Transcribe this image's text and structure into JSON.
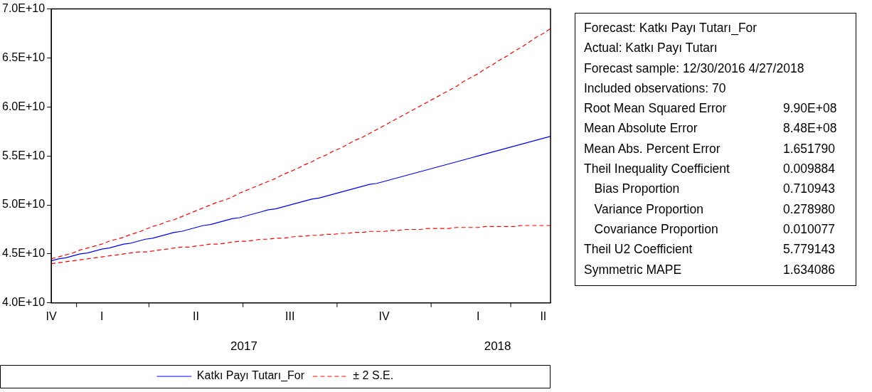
{
  "chart_data": [
    {
      "type": "line",
      "categories": [
        "IV",
        null,
        null,
        null,
        null,
        null,
        null,
        "I",
        null,
        null,
        null,
        null,
        null,
        null,
        null,
        null,
        null,
        null,
        null,
        null,
        "II",
        null,
        null,
        null,
        null,
        null,
        null,
        null,
        null,
        null,
        null,
        null,
        null,
        "III",
        null,
        null,
        null,
        null,
        null,
        null,
        null,
        null,
        null,
        null,
        null,
        null,
        "IV",
        null,
        null,
        null,
        null,
        null,
        null,
        null,
        null,
        null,
        null,
        null,
        null,
        "I",
        null,
        null,
        null,
        null,
        null,
        null,
        null,
        null,
        "II",
        null
      ],
      "series": [
        {
          "name": "Katkı Payı Tutarı_For",
          "color": "#0000ff",
          "line_style": "solid",
          "values": [
            44300000000.0,
            44500000000.0,
            44600000000.0,
            44800000000.0,
            45000000000.0,
            45100000000.0,
            45300000000.0,
            45500000000.0,
            45600000000.0,
            45800000000.0,
            46000000000.0,
            46100000000.0,
            46300000000.0,
            46500000000.0,
            46600000000.0,
            46800000000.0,
            47000000000.0,
            47200000000.0,
            47300000000.0,
            47500000000.0,
            47700000000.0,
            47900000000.0,
            48000000000.0,
            48200000000.0,
            48400000000.0,
            48600000000.0,
            48700000000.0,
            48900000000.0,
            49100000000.0,
            49300000000.0,
            49500000000.0,
            49600000000.0,
            49800000000.0,
            50000000000.0,
            50200000000.0,
            50400000000.0,
            50600000000.0,
            50700000000.0,
            50900000000.0,
            51100000000.0,
            51300000000.0,
            51500000000.0,
            51700000000.0,
            51900000000.0,
            52100000000.0,
            52200000000.0,
            52400000000.0,
            52600000000.0,
            52800000000.0,
            53000000000.0,
            53200000000.0,
            53400000000.0,
            53600000000.0,
            53800000000.0,
            54000000000.0,
            54200000000.0,
            54400000000.0,
            54600000000.0,
            54800000000.0,
            55000000000.0,
            55200000000.0,
            55400000000.0,
            55600000000.0,
            55800000000.0,
            56000000000.0,
            56200000000.0,
            56400000000.0,
            56600000000.0,
            56800000000.0,
            57000000000.0
          ]
        },
        {
          "name": "± 2 S.E.",
          "color": "#ff0000",
          "line_style": "dashed",
          "values": [
            44500000000.0,
            44700000000.0,
            44900000000.0,
            45100000000.0,
            45400000000.0,
            45600000000.0,
            45800000000.0,
            46000000000.0,
            46300000000.0,
            46500000000.0,
            46700000000.0,
            47000000000.0,
            47200000000.0,
            47500000000.0,
            47800000000.0,
            48000000000.0,
            48300000000.0,
            48500000000.0,
            48800000000.0,
            49100000000.0,
            49400000000.0,
            49700000000.0,
            50000000000.0,
            50300000000.0,
            50500000000.0,
            50800000000.0,
            51200000000.0,
            51500000000.0,
            51800000000.0,
            52100000000.0,
            52400000000.0,
            52700000000.0,
            53100000000.0,
            53400000000.0,
            53700000000.0,
            54100000000.0,
            54400000000.0,
            54800000000.0,
            55100000000.0,
            55500000000.0,
            55800000000.0,
            56200000000.0,
            56600000000.0,
            56900000000.0,
            57300000000.0,
            57700000000.0,
            58100000000.0,
            58500000000.0,
            58900000000.0,
            59300000000.0,
            59700000000.0,
            60100000000.0,
            60500000000.0,
            60900000000.0,
            61300000000.0,
            61700000000.0,
            62100000000.0,
            62600000000.0,
            63000000000.0,
            63400000000.0,
            63900000000.0,
            64300000000.0,
            64800000000.0,
            65200000000.0,
            65700000000.0,
            66100000000.0,
            66600000000.0,
            67100000000.0,
            67500000000.0,
            68000000000.0
          ]
        },
        {
          "color": "#ff0000",
          "line_style": "dashed",
          "values": [
            44000000000.0,
            44100000000.0,
            44200000000.0,
            44300000000.0,
            44400000000.0,
            44500000000.0,
            44600000000.0,
            44700000000.0,
            44800000000.0,
            44900000000.0,
            45000000000.0,
            45100000000.0,
            45200000000.0,
            45200000000.0,
            45300000000.0,
            45400000000.0,
            45500000000.0,
            45600000000.0,
            45700000000.0,
            45700000000.0,
            45800000000.0,
            45900000000.0,
            46000000000.0,
            46000000000.0,
            46100000000.0,
            46200000000.0,
            46300000000.0,
            46300000000.0,
            46400000000.0,
            46500000000.0,
            46500000000.0,
            46600000000.0,
            46600000000.0,
            46700000000.0,
            46800000000.0,
            46800000000.0,
            46900000000.0,
            46900000000.0,
            47000000000.0,
            47000000000.0,
            47100000000.0,
            47100000000.0,
            47200000000.0,
            47200000000.0,
            47300000000.0,
            47300000000.0,
            47300000000.0,
            47400000000.0,
            47400000000.0,
            47500000000.0,
            47500000000.0,
            47500000000.0,
            47600000000.0,
            47600000000.0,
            47600000000.0,
            47600000000.0,
            47700000000.0,
            47700000000.0,
            47700000000.0,
            47700000000.0,
            47800000000.0,
            47800000000.0,
            47800000000.0,
            47800000000.0,
            47800000000.0,
            47900000000.0,
            47900000000.0,
            47900000000.0,
            47900000000.0,
            47900000000.0
          ]
        }
      ],
      "ylim": [
        40000000000,
        70000000000
      ],
      "yticks": [
        {
          "value": 40000000000,
          "label": "4.0E+10"
        },
        {
          "value": 45000000000,
          "label": "4.5E+10"
        },
        {
          "value": 50000000000,
          "label": "5.0E+10"
        },
        {
          "value": 55000000000,
          "label": "5.5E+10"
        },
        {
          "value": 60000000000,
          "label": "6.0E+10"
        },
        {
          "value": 65000000000,
          "label": "6.5E+10"
        },
        {
          "value": 70000000000,
          "label": "7.0E+10"
        }
      ],
      "grid": false,
      "marker": "none",
      "legend": "bottom",
      "annotations": [
        "2017",
        "2018"
      ]
    },
    {
      "type": "other",
      "annotations": [
        "Forecast: Katkı Payı Tutarı_For",
        "Actual: Katkı Payı Tutarı",
        "Forecast sample: 12/30/2016 4/27/2018",
        "Included observations: 70",
        "Root Mean Squared Error\t9.90E+08",
        "Mean Absolute Error\t8.48E+08",
        "Mean Abs. Percent Error\t1.651790",
        "Theil Inequality Coefficient\t0.009884",
        "   Bias Proportion\t0.710943",
        "   Variance Proportion\t0.278980",
        "   Covariance Proportion\t0.010077",
        "Theil U2 Coefficient\t5.779143",
        "Symmetric MAPE\t1.634086"
      ]
    }
  ]
}
